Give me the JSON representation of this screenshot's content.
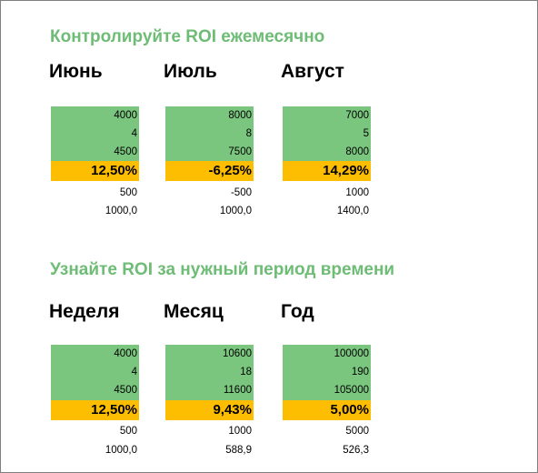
{
  "colors": {
    "title_green": "#6ebc75",
    "input_green": "#7bc67f",
    "result_orange": "#fdbd00",
    "frame_border": "#7f7f7f"
  },
  "sections": [
    {
      "title": "Контролируйте ROI ежемесячно",
      "groups": [
        {
          "label": "Июнь",
          "inputs": [
            "4000",
            "4",
            "4500"
          ],
          "roi": "12,50%",
          "profit": "500",
          "extra": "1000,0"
        },
        {
          "label": "Июль",
          "inputs": [
            "8000",
            "8",
            "7500"
          ],
          "roi": "-6,25%",
          "profit": "-500",
          "extra": "1000,0"
        },
        {
          "label": "Август",
          "inputs": [
            "7000",
            "5",
            "8000"
          ],
          "roi": "14,29%",
          "profit": "1000",
          "extra": "1400,0"
        }
      ]
    },
    {
      "title": "Узнайте ROI за нужный период времени",
      "groups": [
        {
          "label": "Неделя",
          "inputs": [
            "4000",
            "4",
            "4500"
          ],
          "roi": "12,50%",
          "profit": "500",
          "extra": "1000,0"
        },
        {
          "label": "Месяц",
          "inputs": [
            "10600",
            "18",
            "11600"
          ],
          "roi": "9,43%",
          "profit": "1000",
          "extra": "588,9"
        },
        {
          "label": "Год",
          "inputs": [
            "100000",
            "190",
            "105000"
          ],
          "roi": "5,00%",
          "profit": "5000",
          "extra": "526,3"
        }
      ]
    }
  ]
}
